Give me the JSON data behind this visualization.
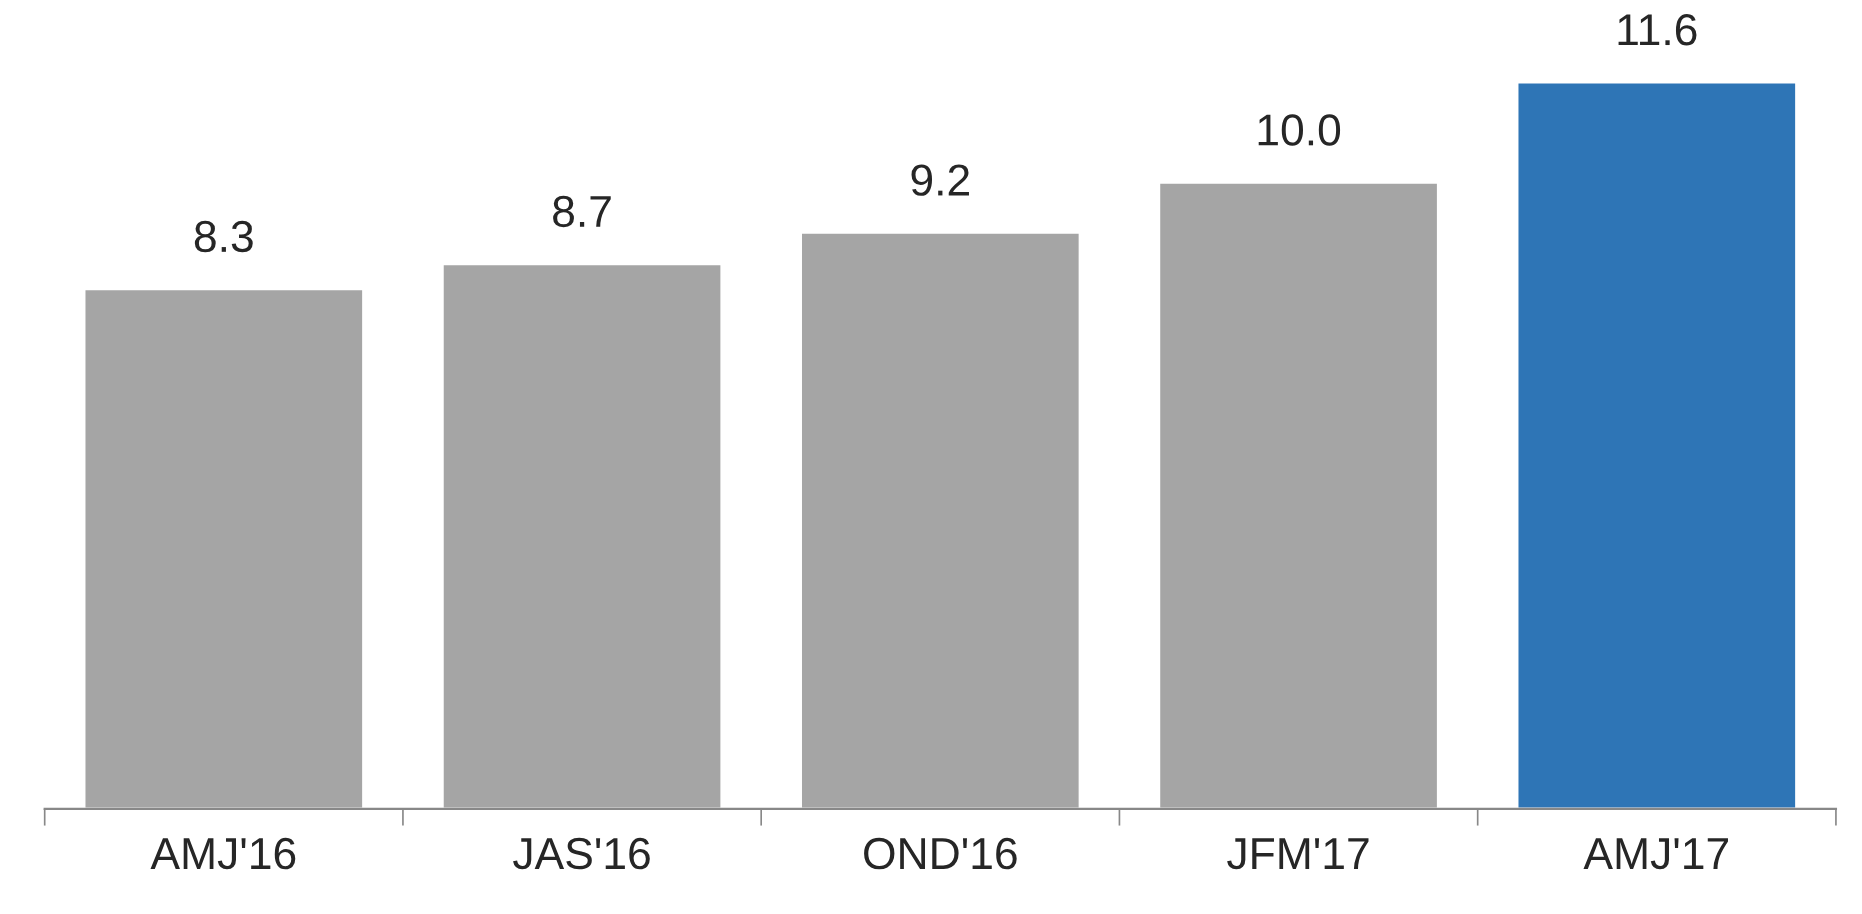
{
  "chart_data": {
    "type": "bar",
    "categories": [
      "AMJ'16",
      "JAS'16",
      "OND'16",
      "JFM'17",
      "AMJ'17"
    ],
    "values": [
      8.3,
      8.7,
      9.2,
      10.0,
      11.6
    ],
    "value_labels": [
      "8.3",
      "8.7",
      "9.2",
      "10.0",
      "11.6"
    ],
    "colors": [
      "#a5a5a5",
      "#a5a5a5",
      "#a5a5a5",
      "#a5a5a5",
      "#2e75b6"
    ]
  }
}
